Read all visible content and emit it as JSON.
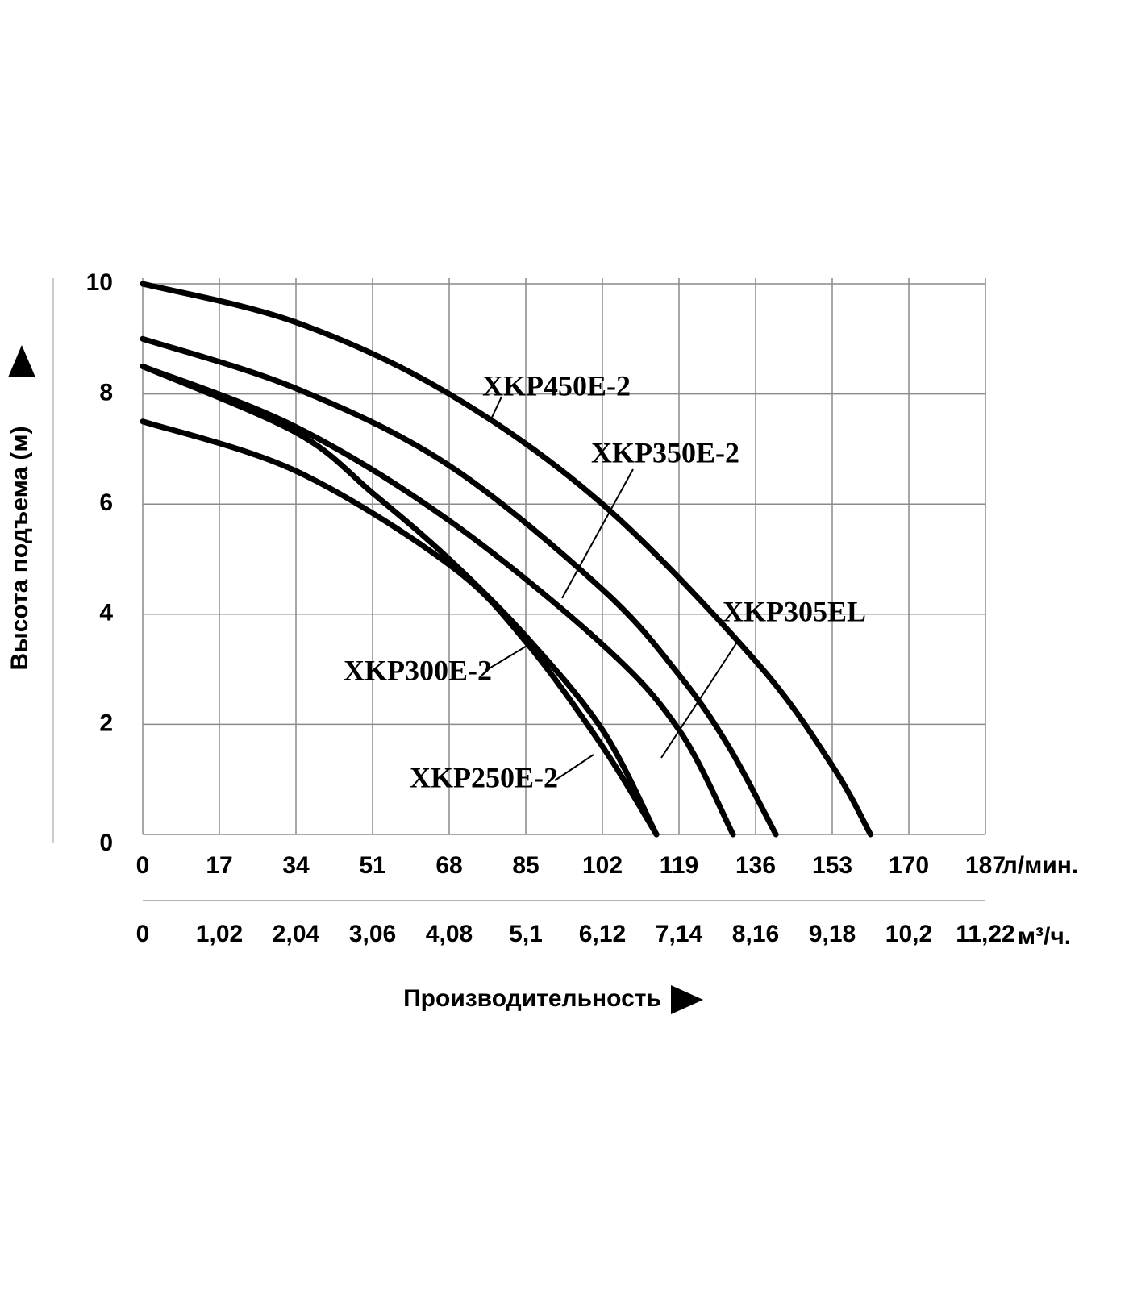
{
  "chart_data": {
    "type": "line",
    "x_label": "Производительность",
    "y_label": "Высота подъема (м)",
    "x_unit": "л/мин.",
    "x2_unit": "м³/ч.",
    "xlim": [
      0,
      187
    ],
    "xticks": [
      0,
      17,
      34,
      51,
      68,
      85,
      102,
      119,
      136,
      153,
      170,
      187
    ],
    "x2lim": [
      0,
      11.22
    ],
    "x2ticks": [
      0,
      {
        "value": 1.02,
        "label": "1,02"
      },
      {
        "value": 2.04,
        "label": "2,04"
      },
      {
        "value": 3.06,
        "label": "3,06"
      },
      {
        "value": 4.08,
        "label": "4,08"
      },
      {
        "value": 5.1,
        "label": "5,1"
      },
      {
        "value": 6.12,
        "label": "6,12"
      },
      {
        "value": 7.14,
        "label": "7,14"
      },
      {
        "value": 8.16,
        "label": "8,16"
      },
      {
        "value": 9.18,
        "label": "9,18"
      },
      {
        "value": 10.2,
        "label": "10,2"
      },
      {
        "value": 11.22,
        "label": "11,22"
      }
    ],
    "ylim": [
      0,
      10
    ],
    "yticks": [
      0,
      2,
      4,
      6,
      8,
      10
    ],
    "grid": true,
    "series": [
      {
        "name": "XKP450E-2",
        "color": "#000000",
        "x": [
          0,
          34,
          68,
          102,
          136,
          153,
          161.5
        ],
        "values": [
          10.0,
          9.3,
          8.0,
          6.0,
          3.15,
          1.25,
          0
        ]
      },
      {
        "name": "XKP350E-2",
        "color": "#000000",
        "x": [
          0,
          34,
          68,
          102,
          119,
          130,
          140.5
        ],
        "values": [
          9.0,
          8.1,
          6.7,
          4.45,
          2.9,
          1.6,
          0
        ]
      },
      {
        "name": "XKP305EL",
        "color": "#000000",
        "x": [
          0,
          34,
          68,
          102,
          119,
          131
        ],
        "values": [
          8.5,
          7.4,
          5.7,
          3.45,
          1.9,
          0
        ]
      },
      {
        "name": "XKP300E-2",
        "color": "#000000",
        "x": [
          0,
          34,
          51,
          68,
          85,
          102,
          114
        ],
        "values": [
          8.5,
          7.3,
          6.2,
          5.0,
          3.6,
          1.9,
          0
        ]
      },
      {
        "name": "XKP250E-2",
        "color": "#000000",
        "x": [
          0,
          34,
          68,
          85,
          102,
          114
        ],
        "values": [
          7.5,
          6.6,
          4.9,
          3.5,
          1.6,
          0
        ]
      }
    ]
  }
}
